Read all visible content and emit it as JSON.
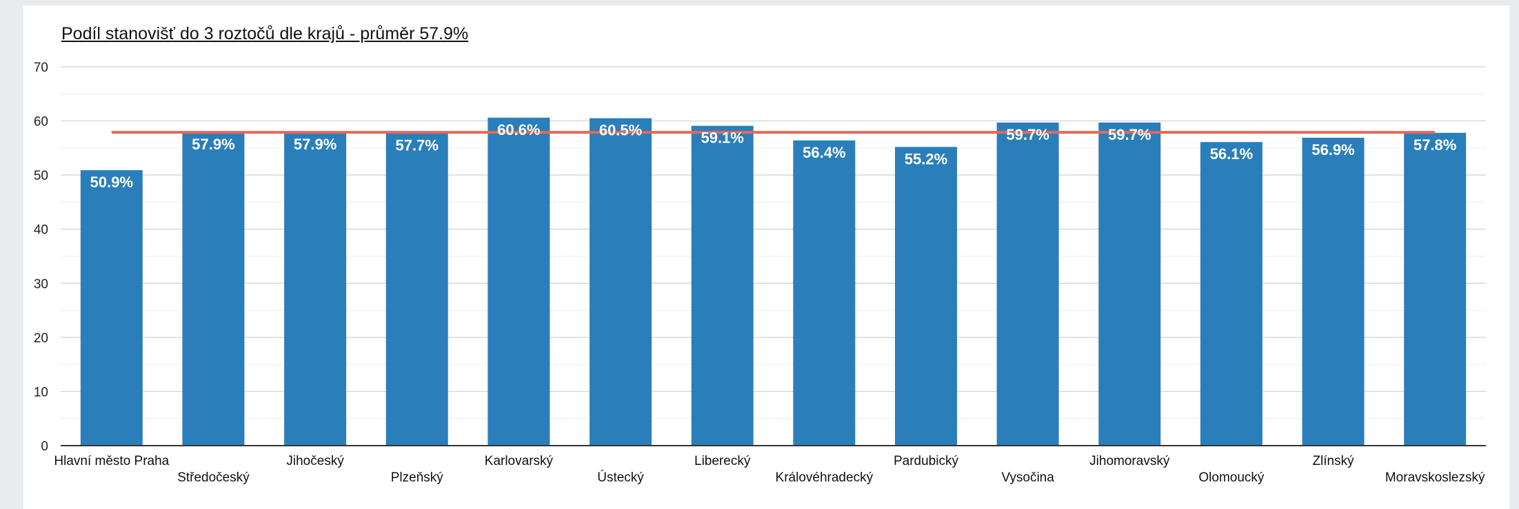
{
  "chart_data": {
    "type": "bar",
    "title": "Podíl stanovišť do 3 roztočů dle krajů - průměr 57.9%",
    "xlabel": "",
    "ylabel": "",
    "ylim": [
      0,
      70
    ],
    "yticks": [
      0,
      10,
      20,
      30,
      40,
      50,
      60,
      70
    ],
    "grid": true,
    "categories": [
      "Hlavní město Praha",
      "Středočeský",
      "Jihočeský",
      "Plzeňský",
      "Karlovarský",
      "Ústecký",
      "Liberecký",
      "Královéhradecký",
      "Pardubický",
      "Vysočina",
      "Jihomoravský",
      "Olomoucký",
      "Zlínský",
      "Moravskoslezský"
    ],
    "values": [
      50.9,
      57.9,
      57.9,
      57.7,
      60.6,
      60.5,
      59.1,
      56.4,
      55.2,
      59.7,
      59.7,
      56.1,
      56.9,
      57.8
    ],
    "data_labels": [
      "50.9%",
      "57.9%",
      "57.9%",
      "57.7%",
      "60.6%",
      "60.5%",
      "59.1%",
      "56.4%",
      "55.2%",
      "59.7%",
      "59.7%",
      "56.1%",
      "56.9%",
      "57.8%"
    ],
    "average_line": 57.9,
    "colors": {
      "bar": "#2a7fba",
      "average_line": "#e8675a",
      "grid": "#d0d0d0",
      "axis": "#333333",
      "background": "#ffffff",
      "page": "#e9ecef"
    }
  }
}
